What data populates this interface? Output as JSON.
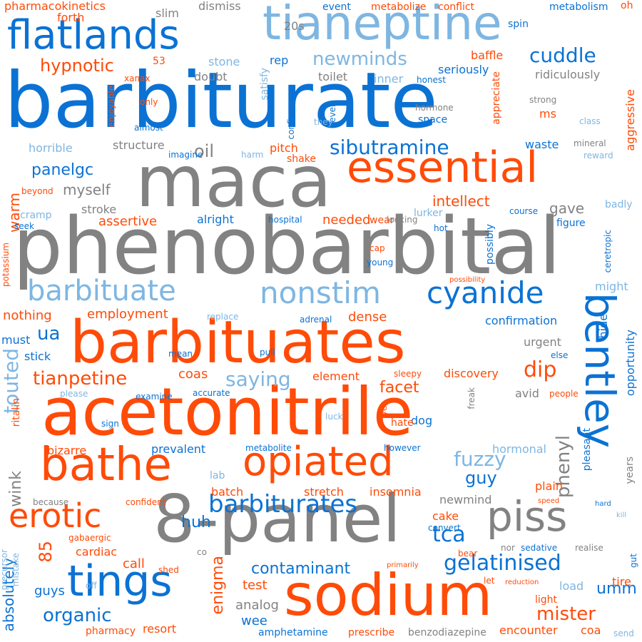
{
  "colors": {
    "blue": "#0b72d4",
    "orange": "#ff4b08",
    "gray": "#828282",
    "light": "#7eb6e2",
    "background": "#ffffff"
  },
  "words": [
    {
      "text": "barbiturate",
      "color": "blue",
      "orientation": "horizontal"
    },
    {
      "text": "phenobarbital",
      "color": "gray",
      "orientation": "horizontal"
    },
    {
      "text": "acetonitrile",
      "color": "orange",
      "orientation": "horizontal"
    },
    {
      "text": "barbituates",
      "color": "orange",
      "orientation": "horizontal"
    },
    {
      "text": "maca",
      "color": "gray",
      "orientation": "horizontal"
    },
    {
      "text": "8-panel",
      "color": "gray",
      "orientation": "horizontal"
    },
    {
      "text": "sodium",
      "color": "orange",
      "orientation": "horizontal"
    },
    {
      "text": "tianeptine",
      "color": "light",
      "orientation": "horizontal"
    },
    {
      "text": "essential",
      "color": "orange",
      "orientation": "horizontal"
    },
    {
      "text": "bathe",
      "color": "orange",
      "orientation": "horizontal"
    },
    {
      "text": "bentley",
      "color": "blue",
      "orientation": "vertical"
    },
    {
      "text": "opiated",
      "color": "orange",
      "orientation": "horizontal"
    },
    {
      "text": "tings",
      "color": "blue",
      "orientation": "horizontal"
    },
    {
      "text": "flatlands",
      "color": "blue",
      "orientation": "horizontal"
    },
    {
      "text": "piss",
      "color": "gray",
      "orientation": "horizontal"
    },
    {
      "text": "barbituate",
      "color": "light",
      "orientation": "horizontal"
    },
    {
      "text": "nonstim",
      "color": "light",
      "orientation": "horizontal"
    },
    {
      "text": "cyanide",
      "color": "blue",
      "orientation": "horizontal"
    },
    {
      "text": "erotic",
      "color": "orange",
      "orientation": "horizontal"
    },
    {
      "text": "barbiturates",
      "color": "blue",
      "orientation": "horizontal"
    },
    {
      "text": "sibutramine",
      "color": "blue",
      "orientation": "horizontal"
    },
    {
      "text": "gelatinised",
      "color": "blue",
      "orientation": "horizontal"
    },
    {
      "text": "cuddle",
      "color": "blue",
      "orientation": "horizontal"
    },
    {
      "text": "newminds",
      "color": "light",
      "orientation": "horizontal"
    },
    {
      "text": "hypnotic",
      "color": "orange",
      "orientation": "horizontal"
    },
    {
      "text": "tianpetine",
      "color": "orange",
      "orientation": "horizontal"
    },
    {
      "text": "saying",
      "color": "light",
      "orientation": "horizontal"
    },
    {
      "text": "fuzzy",
      "color": "light",
      "orientation": "horizontal"
    },
    {
      "text": "contaminant",
      "color": "blue",
      "orientation": "horizontal"
    },
    {
      "text": "organic",
      "color": "blue",
      "orientation": "horizontal"
    },
    {
      "text": "mister",
      "color": "orange",
      "orientation": "horizontal"
    },
    {
      "text": "tca",
      "color": "blue",
      "orientation": "horizontal"
    },
    {
      "text": "panelgc",
      "color": "blue",
      "orientation": "horizontal"
    },
    {
      "text": "ua",
      "color": "blue",
      "orientation": "horizontal"
    },
    {
      "text": "dip",
      "color": "orange",
      "orientation": "horizontal"
    },
    {
      "text": "facet",
      "color": "orange",
      "orientation": "horizontal"
    },
    {
      "text": "oil",
      "color": "gray",
      "orientation": "horizontal"
    },
    {
      "text": "touted",
      "color": "light",
      "orientation": "vertical"
    },
    {
      "text": "enigma",
      "color": "orange",
      "orientation": "vertical"
    },
    {
      "text": "phenyl",
      "color": "gray",
      "orientation": "vertical"
    },
    {
      "text": "guy",
      "color": "blue",
      "orientation": "horizontal"
    },
    {
      "text": "umm",
      "color": "blue",
      "orientation": "horizontal"
    },
    {
      "text": "huh",
      "color": "blue",
      "orientation": "horizontal"
    },
    {
      "text": "85",
      "color": "orange",
      "orientation": "vertical"
    },
    {
      "text": "absolutely",
      "color": "blue",
      "orientation": "vertical"
    },
    {
      "text": "intellect",
      "color": "orange",
      "orientation": "horizontal"
    },
    {
      "text": "assertive",
      "color": "orange",
      "orientation": "horizontal"
    },
    {
      "text": "myself",
      "color": "gray",
      "orientation": "horizontal"
    },
    {
      "text": "employment",
      "color": "orange",
      "orientation": "horizontal"
    },
    {
      "text": "confirmation",
      "color": "blue",
      "orientation": "horizontal"
    },
    {
      "text": "discovery",
      "color": "orange",
      "orientation": "horizontal"
    },
    {
      "text": "prevalent",
      "color": "blue",
      "orientation": "horizontal"
    },
    {
      "text": "insomnia",
      "color": "orange",
      "orientation": "horizontal"
    },
    {
      "text": "stretch",
      "color": "orange",
      "orientation": "horizontal"
    },
    {
      "text": "batch",
      "color": "orange",
      "orientation": "horizontal"
    },
    {
      "text": "test",
      "color": "orange",
      "orientation": "horizontal"
    },
    {
      "text": "analog",
      "color": "gray",
      "orientation": "horizontal"
    },
    {
      "text": "wee",
      "color": "blue",
      "orientation": "horizontal"
    },
    {
      "text": "guys",
      "color": "blue",
      "orientation": "horizontal"
    },
    {
      "text": "call",
      "color": "orange",
      "orientation": "horizontal"
    },
    {
      "text": "cardiac",
      "color": "orange",
      "orientation": "horizontal"
    },
    {
      "text": "bizarre",
      "color": "orange",
      "orientation": "horizontal"
    },
    {
      "text": "wink",
      "color": "gray",
      "orientation": "vertical"
    },
    {
      "text": "warm",
      "color": "orange",
      "orientation": "vertical"
    },
    {
      "text": "gave",
      "color": "gray",
      "orientation": "horizontal"
    },
    {
      "text": "waste",
      "color": "blue",
      "orientation": "horizontal"
    },
    {
      "text": "ms",
      "color": "orange",
      "orientation": "horizontal"
    },
    {
      "text": "seriously",
      "color": "blue",
      "orientation": "horizontal"
    },
    {
      "text": "baffle",
      "color": "orange",
      "orientation": "horizontal"
    },
    {
      "text": "ridiculously",
      "color": "gray",
      "orientation": "horizontal"
    },
    {
      "text": "doubt",
      "color": "gray",
      "orientation": "horizontal"
    },
    {
      "text": "toilet",
      "color": "gray",
      "orientation": "horizontal"
    },
    {
      "text": "inner",
      "color": "light",
      "orientation": "horizontal"
    },
    {
      "text": "rep",
      "color": "blue",
      "orientation": "horizontal"
    },
    {
      "text": "stone",
      "color": "light",
      "orientation": "horizontal"
    },
    {
      "text": "53",
      "color": "orange",
      "orientation": "horizontal"
    },
    {
      "text": "slim",
      "color": "gray",
      "orientation": "horizontal"
    },
    {
      "text": "dismiss",
      "color": "gray",
      "orientation": "horizontal"
    },
    {
      "text": "20s",
      "color": "gray",
      "orientation": "horizontal"
    },
    {
      "text": "forth",
      "color": "orange",
      "orientation": "horizontal"
    },
    {
      "text": "pharmacokinetics",
      "color": "orange",
      "orientation": "horizontal"
    },
    {
      "text": "event",
      "color": "blue",
      "orientation": "horizontal"
    },
    {
      "text": "metabolize",
      "color": "orange",
      "orientation": "horizontal"
    },
    {
      "text": "conflict",
      "color": "orange",
      "orientation": "horizontal"
    },
    {
      "text": "metabolism",
      "color": "blue",
      "orientation": "horizontal"
    },
    {
      "text": "oh",
      "color": "orange",
      "orientation": "horizontal"
    },
    {
      "text": "spin",
      "color": "blue",
      "orientation": "horizontal"
    },
    {
      "text": "structure",
      "color": "gray",
      "orientation": "horizontal"
    },
    {
      "text": "horrible",
      "color": "light",
      "orientation": "horizontal"
    },
    {
      "text": "pitch",
      "color": "orange",
      "orientation": "horizontal"
    },
    {
      "text": "shake",
      "color": "orange",
      "orientation": "horizontal"
    },
    {
      "text": "stroke",
      "color": "gray",
      "orientation": "horizontal"
    },
    {
      "text": "cramp",
      "color": "light",
      "orientation": "horizontal"
    },
    {
      "text": "needed",
      "color": "orange",
      "orientation": "horizontal"
    },
    {
      "text": "wear",
      "color": "orange",
      "orientation": "horizontal"
    },
    {
      "text": "alright",
      "color": "blue",
      "orientation": "horizontal"
    },
    {
      "text": "lurker",
      "color": "light",
      "orientation": "horizontal"
    },
    {
      "text": "dense",
      "color": "orange",
      "orientation": "horizontal"
    },
    {
      "text": "urgent",
      "color": "gray",
      "orientation": "horizontal"
    },
    {
      "text": "nothing",
      "color": "orange",
      "orientation": "horizontal"
    },
    {
      "text": "must",
      "color": "blue",
      "orientation": "horizontal"
    },
    {
      "text": "stick",
      "color": "blue",
      "orientation": "horizontal"
    },
    {
      "text": "coas",
      "color": "orange",
      "orientation": "horizontal"
    },
    {
      "text": "element",
      "color": "orange",
      "orientation": "horizontal"
    },
    {
      "text": "avid",
      "color": "gray",
      "orientation": "horizontal"
    },
    {
      "text": "dog",
      "color": "blue",
      "orientation": "horizontal"
    },
    {
      "text": "hormonal",
      "color": "light",
      "orientation": "horizontal"
    },
    {
      "text": "newmind",
      "color": "gray",
      "orientation": "horizontal"
    },
    {
      "text": "plain",
      "color": "orange",
      "orientation": "horizontal"
    },
    {
      "text": "cake",
      "color": "orange",
      "orientation": "horizontal"
    },
    {
      "text": "load",
      "color": "light",
      "orientation": "horizontal"
    },
    {
      "text": "tire",
      "color": "orange",
      "orientation": "horizontal"
    },
    {
      "text": "light",
      "color": "orange",
      "orientation": "horizontal"
    },
    {
      "text": "coa",
      "color": "orange",
      "orientation": "horizontal"
    },
    {
      "text": "encounter",
      "color": "orange",
      "orientation": "horizontal"
    },
    {
      "text": "amphetamine",
      "color": "blue",
      "orientation": "horizontal"
    },
    {
      "text": "prescribe",
      "color": "orange",
      "orientation": "horizontal"
    },
    {
      "text": "benzodiazepine",
      "color": "gray",
      "orientation": "horizontal"
    },
    {
      "text": "resort",
      "color": "orange",
      "orientation": "horizontal"
    },
    {
      "text": "pharmacy",
      "color": "orange",
      "orientation": "horizontal"
    },
    {
      "text": "send",
      "color": "light",
      "orientation": "horizontal"
    },
    {
      "text": "opportunity",
      "color": "blue",
      "orientation": "vertical"
    },
    {
      "text": "aggressive",
      "color": "orange",
      "orientation": "vertical"
    },
    {
      "text": "ceretropic",
      "color": "blue",
      "orientation": "vertical"
    },
    {
      "text": "hide",
      "color": "blue",
      "orientation": "vertical"
    },
    {
      "text": "years",
      "color": "gray",
      "orientation": "vertical"
    },
    {
      "text": "pleasant",
      "color": "blue",
      "orientation": "vertical"
    },
    {
      "text": "might",
      "color": "light",
      "orientation": "horizontal"
    },
    {
      "text": "figure",
      "color": "blue",
      "orientation": "horizontal"
    },
    {
      "text": "course",
      "color": "blue",
      "orientation": "horizontal"
    },
    {
      "text": "badly",
      "color": "light",
      "orientation": "horizontal"
    },
    {
      "text": "reward",
      "color": "light",
      "orientation": "horizontal"
    },
    {
      "text": "mineral",
      "color": "gray",
      "orientation": "horizontal"
    },
    {
      "text": "class",
      "color": "light",
      "orientation": "horizontal"
    },
    {
      "text": "strong",
      "color": "gray",
      "orientation": "horizontal"
    },
    {
      "text": "hormone",
      "color": "gray",
      "orientation": "horizontal"
    },
    {
      "text": "space",
      "color": "blue",
      "orientation": "horizontal"
    },
    {
      "text": "appreciate",
      "color": "orange",
      "orientation": "vertical"
    },
    {
      "text": "satisfy",
      "color": "light",
      "orientation": "vertical"
    },
    {
      "text": "confirm",
      "color": "blue",
      "orientation": "vertical"
    },
    {
      "text": "ever",
      "color": "blue",
      "orientation": "vertical"
    },
    {
      "text": "they",
      "color": "light",
      "orientation": "horizontal"
    },
    {
      "text": "honest",
      "color": "blue",
      "orientation": "horizontal"
    },
    {
      "text": "xanax",
      "color": "orange",
      "orientation": "horizontal"
    },
    {
      "text": "only",
      "color": "orange",
      "orientation": "horizontal"
    },
    {
      "text": "almost",
      "color": "blue",
      "orientation": "horizontal"
    },
    {
      "text": "enjoyable",
      "color": "orange",
      "orientation": "vertical"
    },
    {
      "text": "imagine",
      "color": "blue",
      "orientation": "horizontal"
    },
    {
      "text": "harm",
      "color": "light",
      "orientation": "horizontal"
    },
    {
      "text": "beyond",
      "color": "orange",
      "orientation": "horizontal"
    },
    {
      "text": "seek",
      "color": "blue",
      "orientation": "horizontal"
    },
    {
      "text": "hospital",
      "color": "blue",
      "orientation": "horizontal"
    },
    {
      "text": "looking",
      "color": "gray",
      "orientation": "horizontal"
    },
    {
      "text": "hot",
      "color": "blue",
      "orientation": "horizontal"
    },
    {
      "text": "cap",
      "color": "orange",
      "orientation": "horizontal"
    },
    {
      "text": "young",
      "color": "blue",
      "orientation": "horizontal"
    },
    {
      "text": "possibly",
      "color": "blue",
      "orientation": "vertical"
    },
    {
      "text": "possibility",
      "color": "orange",
      "orientation": "horizontal"
    },
    {
      "text": "potassium",
      "color": "orange",
      "orientation": "vertical"
    },
    {
      "text": "replace",
      "color": "light",
      "orientation": "horizontal"
    },
    {
      "text": "adrenal",
      "color": "blue",
      "orientation": "horizontal"
    },
    {
      "text": "mean",
      "color": "blue",
      "orientation": "horizontal"
    },
    {
      "text": "pull",
      "color": "blue",
      "orientation": "horizontal"
    },
    {
      "text": "else",
      "color": "blue",
      "orientation": "horizontal"
    },
    {
      "text": "sleepy",
      "color": "orange",
      "orientation": "horizontal"
    },
    {
      "text": "people",
      "color": "orange",
      "orientation": "horizontal"
    },
    {
      "text": "please",
      "color": "light",
      "orientation": "horizontal"
    },
    {
      "text": "examine",
      "color": "blue",
      "orientation": "horizontal"
    },
    {
      "text": "accurate",
      "color": "blue",
      "orientation": "horizontal"
    },
    {
      "text": "ritalin",
      "color": "orange",
      "orientation": "vertical"
    },
    {
      "text": "sign",
      "color": "blue",
      "orientation": "horizontal"
    },
    {
      "text": "luck",
      "color": "light",
      "orientation": "horizontal"
    },
    {
      "text": "yet",
      "color": "orange",
      "orientation": "vertical"
    },
    {
      "text": "hate",
      "color": "orange",
      "orientation": "horizontal"
    },
    {
      "text": "freak",
      "color": "gray",
      "orientation": "vertical"
    },
    {
      "text": "however",
      "color": "blue",
      "orientation": "horizontal"
    },
    {
      "text": "metabolite",
      "color": "blue",
      "orientation": "horizontal"
    },
    {
      "text": "lab",
      "color": "light",
      "orientation": "horizontal"
    },
    {
      "text": "because",
      "color": "gray",
      "orientation": "horizontal"
    },
    {
      "text": "confident",
      "color": "orange",
      "orientation": "horizontal"
    },
    {
      "text": "speed",
      "color": "orange",
      "orientation": "horizontal"
    },
    {
      "text": "hard",
      "color": "blue",
      "orientation": "horizontal"
    },
    {
      "text": "kill",
      "color": "light",
      "orientation": "horizontal"
    },
    {
      "text": "convert",
      "color": "blue",
      "orientation": "horizontal"
    },
    {
      "text": "gabaergic",
      "color": "orange",
      "orientation": "horizontal"
    },
    {
      "text": "precursor",
      "color": "light",
      "orientation": "vertical"
    },
    {
      "text": "mistake",
      "color": "light",
      "orientation": "vertical"
    },
    {
      "text": "shed",
      "color": "orange",
      "orientation": "horizontal"
    },
    {
      "text": "co",
      "color": "gray",
      "orientation": "horizontal"
    },
    {
      "text": "bear",
      "color": "orange",
      "orientation": "horizontal"
    },
    {
      "text": "nor",
      "color": "gray",
      "orientation": "horizontal"
    },
    {
      "text": "sedative",
      "color": "blue",
      "orientation": "horizontal"
    },
    {
      "text": "realise",
      "color": "gray",
      "orientation": "horizontal"
    },
    {
      "text": "gut",
      "color": "blue",
      "orientation": "vertical"
    },
    {
      "text": "primarily",
      "color": "orange",
      "orientation": "horizontal"
    },
    {
      "text": "off",
      "color": "light",
      "orientation": "horizontal"
    },
    {
      "text": "let",
      "color": "orange",
      "orientation": "horizontal"
    },
    {
      "text": "reduction",
      "color": "orange",
      "orientation": "horizontal"
    }
  ]
}
